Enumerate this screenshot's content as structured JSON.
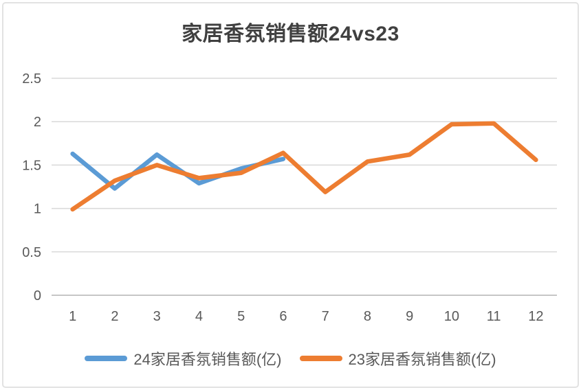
{
  "chart_data": {
    "type": "line",
    "title": "家居香氛销售额24vs23",
    "categories": [
      "1",
      "2",
      "3",
      "4",
      "5",
      "6",
      "7",
      "8",
      "9",
      "10",
      "11",
      "12"
    ],
    "series": [
      {
        "name": "24家居香氛销售额(亿)",
        "color": "#5B9BD5",
        "values": [
          1.63,
          1.23,
          1.62,
          1.29,
          1.46,
          1.57,
          null,
          null,
          null,
          null,
          null,
          null
        ]
      },
      {
        "name": "23家居香氛销售额(亿)",
        "color": "#ED7D31",
        "values": [
          0.99,
          1.32,
          1.5,
          1.35,
          1.41,
          1.64,
          1.19,
          1.54,
          1.62,
          1.97,
          1.98,
          1.56
        ]
      }
    ],
    "xlabel": "",
    "ylabel": "",
    "ylim": [
      0,
      2.5
    ],
    "ytick_step": 0.5,
    "grid": true,
    "legend_position": "bottom"
  },
  "theme": {
    "background": "#ffffff",
    "border_color": "#e2e2e2",
    "title_color": "#404040",
    "tick_color": "#595959",
    "gridline_color": "#d9d9d9",
    "axis_line_color": "#c6c6c6"
  }
}
